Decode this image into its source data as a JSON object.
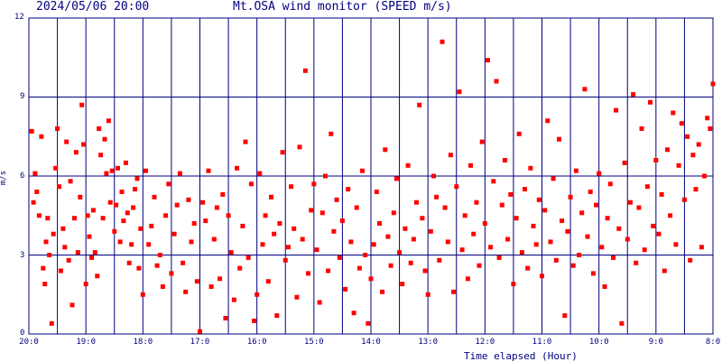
{
  "header": {
    "datetime": "2024/05/06 20:00",
    "title": "Mt.OSA wind monitor (SPEED m/s)"
  },
  "colors": {
    "grid": "#000080",
    "points": "#ff0000",
    "background": "#ffffff"
  },
  "chart_data": {
    "type": "scatter",
    "title": "Mt.OSA wind monitor (SPEED m/s)",
    "xlabel": "Time elapsed (Hour)",
    "ylabel": "m/s",
    "ylim": [
      0,
      12
    ],
    "yticks": [
      "0",
      "3",
      "6",
      "9",
      "12"
    ],
    "xticks": [
      "20:0",
      "19:0",
      "18:0",
      "17:0",
      "16:0",
      "15:0",
      "14:0",
      "13:0",
      "12:0",
      "11:0",
      "10:0",
      "9:0",
      "8:0"
    ],
    "xlim_hours_elapsed": [
      0,
      12
    ],
    "grid": true,
    "series": [
      {
        "points": [
          [
            0.05,
            7.7
          ],
          [
            0.08,
            5.0
          ],
          [
            0.11,
            6.1
          ],
          [
            0.14,
            5.4
          ],
          [
            0.18,
            4.5
          ],
          [
            0.22,
            7.5
          ],
          [
            0.25,
            2.5
          ],
          [
            0.28,
            1.9
          ],
          [
            0.3,
            3.5
          ],
          [
            0.33,
            4.4
          ],
          [
            0.36,
            3.0
          ],
          [
            0.4,
            0.4
          ],
          [
            0.43,
            3.8
          ],
          [
            0.47,
            6.3
          ],
          [
            0.5,
            7.8
          ],
          [
            0.53,
            5.6
          ],
          [
            0.56,
            2.4
          ],
          [
            0.6,
            4.0
          ],
          [
            0.63,
            3.3
          ],
          [
            0.66,
            7.3
          ],
          [
            0.7,
            2.8
          ],
          [
            0.73,
            5.8
          ],
          [
            0.76,
            1.1
          ],
          [
            0.8,
            4.4
          ],
          [
            0.83,
            6.9
          ],
          [
            0.86,
            3.1
          ],
          [
            0.9,
            5.2
          ],
          [
            0.93,
            8.7
          ],
          [
            0.96,
            7.2
          ],
          [
            1.0,
            1.9
          ],
          [
            1.03,
            4.5
          ],
          [
            1.06,
            3.7
          ],
          [
            1.1,
            2.9
          ],
          [
            1.13,
            4.7
          ],
          [
            1.16,
            3.1
          ],
          [
            1.2,
            2.2
          ],
          [
            1.23,
            7.8
          ],
          [
            1.26,
            6.8
          ],
          [
            1.3,
            4.4
          ],
          [
            1.33,
            7.4
          ],
          [
            1.36,
            6.1
          ],
          [
            1.4,
            8.1
          ],
          [
            1.43,
            5.0
          ],
          [
            1.46,
            6.2
          ],
          [
            1.5,
            3.9
          ],
          [
            1.53,
            4.9
          ],
          [
            1.56,
            6.3
          ],
          [
            1.6,
            3.5
          ],
          [
            1.63,
            5.4
          ],
          [
            1.66,
            4.3
          ],
          [
            1.7,
            6.5
          ],
          [
            1.73,
            4.6
          ],
          [
            1.76,
            2.7
          ],
          [
            1.8,
            3.4
          ],
          [
            1.83,
            4.8
          ],
          [
            1.86,
            5.5
          ],
          [
            1.9,
            5.9
          ],
          [
            1.93,
            2.5
          ],
          [
            1.96,
            4.0
          ],
          [
            2.0,
            1.5
          ],
          [
            2.05,
            6.2
          ],
          [
            2.1,
            3.4
          ],
          [
            2.15,
            4.1
          ],
          [
            2.2,
            5.2
          ],
          [
            2.25,
            2.6
          ],
          [
            2.3,
            3.0
          ],
          [
            2.35,
            1.8
          ],
          [
            2.4,
            4.5
          ],
          [
            2.45,
            5.7
          ],
          [
            2.5,
            2.3
          ],
          [
            2.55,
            3.8
          ],
          [
            2.6,
            4.9
          ],
          [
            2.65,
            6.1
          ],
          [
            2.7,
            2.7
          ],
          [
            2.75,
            1.6
          ],
          [
            2.8,
            5.1
          ],
          [
            2.85,
            3.5
          ],
          [
            2.9,
            4.2
          ],
          [
            2.95,
            2.0
          ],
          [
            3.0,
            0.1
          ],
          [
            3.05,
            5.0
          ],
          [
            3.1,
            4.3
          ],
          [
            3.15,
            6.2
          ],
          [
            3.2,
            1.8
          ],
          [
            3.25,
            3.6
          ],
          [
            3.3,
            4.8
          ],
          [
            3.35,
            2.1
          ],
          [
            3.4,
            5.3
          ],
          [
            3.45,
            0.6
          ],
          [
            3.5,
            4.5
          ],
          [
            3.55,
            3.1
          ],
          [
            3.6,
            1.3
          ],
          [
            3.65,
            6.3
          ],
          [
            3.7,
            2.5
          ],
          [
            3.75,
            4.1
          ],
          [
            3.8,
            7.3
          ],
          [
            3.85,
            2.9
          ],
          [
            3.9,
            5.7
          ],
          [
            3.95,
            0.5
          ],
          [
            4.0,
            1.5
          ],
          [
            4.05,
            6.1
          ],
          [
            4.1,
            3.4
          ],
          [
            4.15,
            4.5
          ],
          [
            4.2,
            2.0
          ],
          [
            4.25,
            5.2
          ],
          [
            4.3,
            3.8
          ],
          [
            4.35,
            0.7
          ],
          [
            4.4,
            4.2
          ],
          [
            4.45,
            6.9
          ],
          [
            4.5,
            2.8
          ],
          [
            4.55,
            3.3
          ],
          [
            4.6,
            5.6
          ],
          [
            4.65,
            4.0
          ],
          [
            4.7,
            1.4
          ],
          [
            4.75,
            7.1
          ],
          [
            4.8,
            3.6
          ],
          [
            4.85,
            10.0
          ],
          [
            4.9,
            2.3
          ],
          [
            4.95,
            4.7
          ],
          [
            5.0,
            5.7
          ],
          [
            5.05,
            3.2
          ],
          [
            5.1,
            1.2
          ],
          [
            5.15,
            4.6
          ],
          [
            5.2,
            6.0
          ],
          [
            5.25,
            2.4
          ],
          [
            5.3,
            7.6
          ],
          [
            5.35,
            3.9
          ],
          [
            5.4,
            5.1
          ],
          [
            5.45,
            2.9
          ],
          [
            5.5,
            4.3
          ],
          [
            5.55,
            1.7
          ],
          [
            5.6,
            5.5
          ],
          [
            5.65,
            3.5
          ],
          [
            5.7,
            0.8
          ],
          [
            5.75,
            4.8
          ],
          [
            5.8,
            2.5
          ],
          [
            5.85,
            6.2
          ],
          [
            5.9,
            3.0
          ],
          [
            5.95,
            0.4
          ],
          [
            6.0,
            2.1
          ],
          [
            6.05,
            3.4
          ],
          [
            6.1,
            5.4
          ],
          [
            6.15,
            4.2
          ],
          [
            6.2,
            1.6
          ],
          [
            6.25,
            7.0
          ],
          [
            6.3,
            3.7
          ],
          [
            6.35,
            2.6
          ],
          [
            6.4,
            4.6
          ],
          [
            6.45,
            5.9
          ],
          [
            6.5,
            3.1
          ],
          [
            6.55,
            1.9
          ],
          [
            6.6,
            4.0
          ],
          [
            6.65,
            6.4
          ],
          [
            6.7,
            2.7
          ],
          [
            6.75,
            3.6
          ],
          [
            6.8,
            5.0
          ],
          [
            6.85,
            8.7
          ],
          [
            6.9,
            4.4
          ],
          [
            6.95,
            2.4
          ],
          [
            7.0,
            1.5
          ],
          [
            7.05,
            3.9
          ],
          [
            7.1,
            6.0
          ],
          [
            7.15,
            5.2
          ],
          [
            7.2,
            2.8
          ],
          [
            7.25,
            11.1
          ],
          [
            7.3,
            4.8
          ],
          [
            7.35,
            3.5
          ],
          [
            7.4,
            6.8
          ],
          [
            7.45,
            1.6
          ],
          [
            7.5,
            5.6
          ],
          [
            7.55,
            9.2
          ],
          [
            7.6,
            3.2
          ],
          [
            7.65,
            4.5
          ],
          [
            7.7,
            2.1
          ],
          [
            7.75,
            6.4
          ],
          [
            7.8,
            3.8
          ],
          [
            7.85,
            5.0
          ],
          [
            7.9,
            2.6
          ],
          [
            7.95,
            7.3
          ],
          [
            8.0,
            4.2
          ],
          [
            8.05,
            10.4
          ],
          [
            8.1,
            3.3
          ],
          [
            8.15,
            5.8
          ],
          [
            8.2,
            9.6
          ],
          [
            8.25,
            2.9
          ],
          [
            8.3,
            4.9
          ],
          [
            8.35,
            6.6
          ],
          [
            8.4,
            3.6
          ],
          [
            8.45,
            5.3
          ],
          [
            8.5,
            1.9
          ],
          [
            8.55,
            4.4
          ],
          [
            8.6,
            7.6
          ],
          [
            8.65,
            3.1
          ],
          [
            8.7,
            5.5
          ],
          [
            8.75,
            2.5
          ],
          [
            8.8,
            6.3
          ],
          [
            8.85,
            4.1
          ],
          [
            8.9,
            3.4
          ],
          [
            8.95,
            5.1
          ],
          [
            9.0,
            2.2
          ],
          [
            9.05,
            4.7
          ],
          [
            9.1,
            8.1
          ],
          [
            9.15,
            3.5
          ],
          [
            9.2,
            5.9
          ],
          [
            9.25,
            2.8
          ],
          [
            9.3,
            7.4
          ],
          [
            9.35,
            4.3
          ],
          [
            9.4,
            0.7
          ],
          [
            9.45,
            3.9
          ],
          [
            9.5,
            5.2
          ],
          [
            9.55,
            2.6
          ],
          [
            9.6,
            6.2
          ],
          [
            9.65,
            3.0
          ],
          [
            9.7,
            4.6
          ],
          [
            9.75,
            9.3
          ],
          [
            9.8,
            3.7
          ],
          [
            9.85,
            5.4
          ],
          [
            9.9,
            2.3
          ],
          [
            9.95,
            4.9
          ],
          [
            10.0,
            6.1
          ],
          [
            10.05,
            3.3
          ],
          [
            10.1,
            1.8
          ],
          [
            10.15,
            4.4
          ],
          [
            10.2,
            5.7
          ],
          [
            10.25,
            2.9
          ],
          [
            10.3,
            8.5
          ],
          [
            10.35,
            4.0
          ],
          [
            10.4,
            0.4
          ],
          [
            10.45,
            6.5
          ],
          [
            10.5,
            3.6
          ],
          [
            10.55,
            5.0
          ],
          [
            10.6,
            9.1
          ],
          [
            10.65,
            2.7
          ],
          [
            10.7,
            4.8
          ],
          [
            10.75,
            7.8
          ],
          [
            10.8,
            3.2
          ],
          [
            10.85,
            5.6
          ],
          [
            10.9,
            8.8
          ],
          [
            10.95,
            4.1
          ],
          [
            11.0,
            6.6
          ],
          [
            11.05,
            3.8
          ],
          [
            11.1,
            5.3
          ],
          [
            11.15,
            2.4
          ],
          [
            11.2,
            7.0
          ],
          [
            11.25,
            4.5
          ],
          [
            11.3,
            8.4
          ],
          [
            11.35,
            3.4
          ],
          [
            11.4,
            6.4
          ],
          [
            11.45,
            8.0
          ],
          [
            11.5,
            5.1
          ],
          [
            11.55,
            7.5
          ],
          [
            11.6,
            2.8
          ],
          [
            11.65,
            6.8
          ],
          [
            11.7,
            5.5
          ],
          [
            11.75,
            7.2
          ],
          [
            11.8,
            3.3
          ],
          [
            11.85,
            6.0
          ],
          [
            11.9,
            8.2
          ],
          [
            11.95,
            7.8
          ],
          [
            12.0,
            9.5
          ]
        ]
      }
    ]
  }
}
